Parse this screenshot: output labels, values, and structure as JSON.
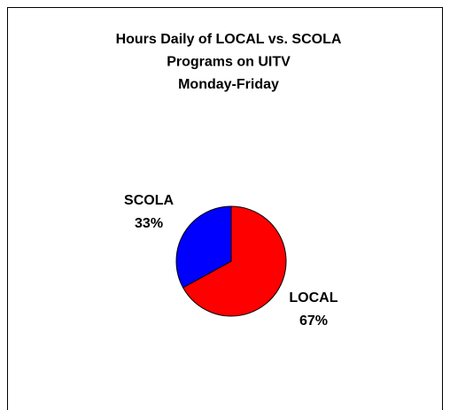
{
  "chart_data": {
    "type": "pie",
    "title": [
      "Hours Daily of LOCAL vs. SCOLA",
      "Programs on UITV",
      "Monday-Friday"
    ],
    "categories": [
      "LOCAL",
      "SCOLA"
    ],
    "values": [
      67,
      33
    ],
    "value_labels": [
      "67%",
      "33%"
    ],
    "colors": [
      "#ff0000",
      "#0000ff"
    ]
  }
}
